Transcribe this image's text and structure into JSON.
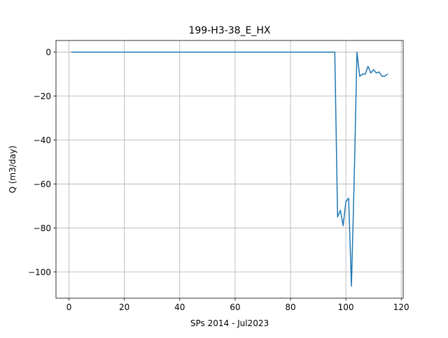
{
  "chart_data": {
    "type": "line",
    "title": "199-H3-38_E_HX",
    "xlabel": "SPs 2014 - Jul2023",
    "ylabel": "Q (m3/day)",
    "xlim": [
      -4.7,
      120.7
    ],
    "ylim": [
      -112.0,
      5.3
    ],
    "xticks": [
      0,
      20,
      40,
      60,
      80,
      100,
      120
    ],
    "yticks": [
      0,
      -20,
      -40,
      -60,
      -80,
      -100
    ],
    "grid": true,
    "series": [
      {
        "color": "#1f77b4",
        "x": [
          1,
          20,
          40,
          60,
          80,
          96,
          97,
          98,
          99,
          100,
          101,
          102,
          103,
          104,
          105,
          106,
          107,
          108,
          109,
          110,
          111,
          112,
          113,
          114,
          115
        ],
        "y": [
          0,
          0,
          0,
          0,
          0,
          0,
          -75,
          -72,
          -79,
          -68,
          -66.5,
          -106.5,
          -58,
          0,
          -11,
          -10,
          -10,
          -6.5,
          -9.5,
          -8,
          -9.5,
          -9,
          -11,
          -11,
          -10
        ]
      }
    ]
  }
}
